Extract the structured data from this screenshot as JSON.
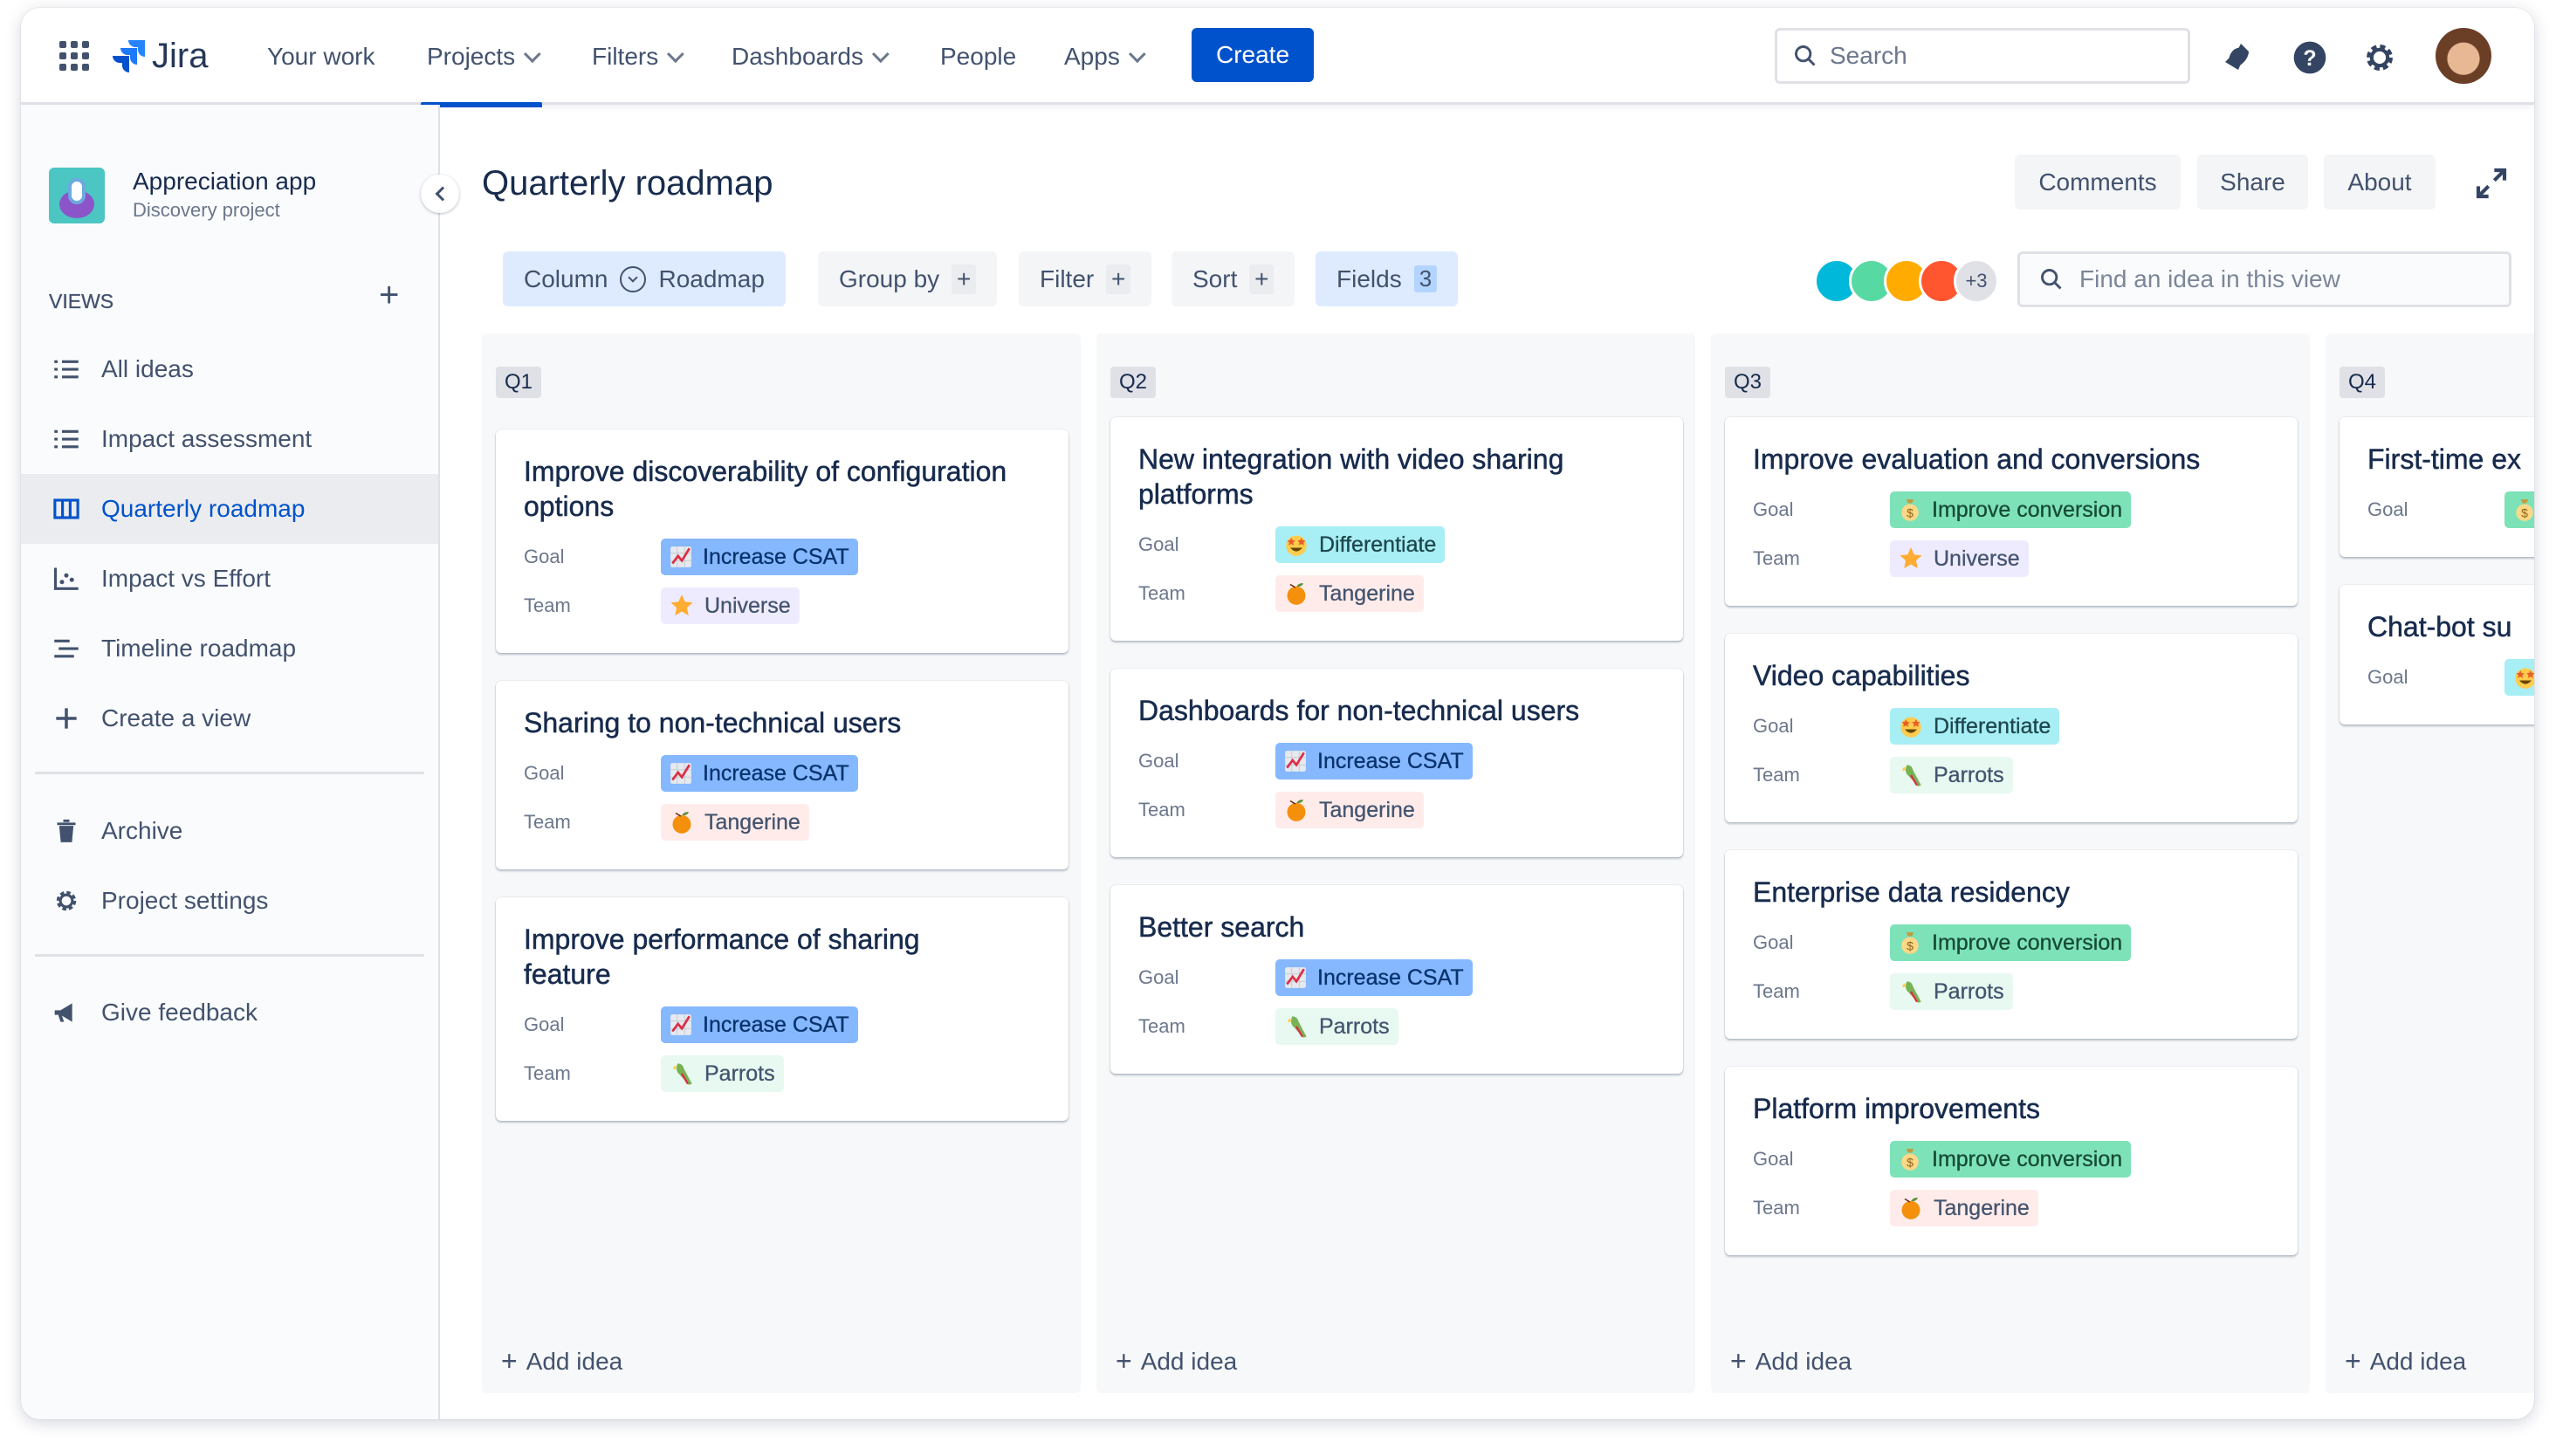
{
  "nav": {
    "logo_text": "Jira",
    "links": [
      {
        "label": "Your work",
        "dropdown": false
      },
      {
        "label": "Projects",
        "dropdown": true,
        "active": true
      },
      {
        "label": "Filters",
        "dropdown": true
      },
      {
        "label": "Dashboards",
        "dropdown": true
      },
      {
        "label": "People",
        "dropdown": false
      },
      {
        "label": "Apps",
        "dropdown": true
      }
    ],
    "create_label": "Create",
    "search_placeholder": "Search",
    "accent": "#0052CC"
  },
  "project": {
    "name": "Appreciation app",
    "type": "Discovery project"
  },
  "sidebar": {
    "views_label": "VIEWS",
    "items": [
      {
        "label": "All ideas",
        "icon": "list-icon"
      },
      {
        "label": "Impact assessment",
        "icon": "list-icon"
      },
      {
        "label": "Quarterly roadmap",
        "icon": "board-icon",
        "selected": true
      },
      {
        "label": "Impact vs Effort",
        "icon": "matrix-icon"
      },
      {
        "label": "Timeline roadmap",
        "icon": "timeline-icon"
      },
      {
        "label": "Create a view",
        "icon": "plus-icon"
      }
    ],
    "bottom_items": [
      {
        "label": "Archive",
        "icon": "trash-icon"
      },
      {
        "label": "Project settings",
        "icon": "gear-icon"
      }
    ],
    "feedback_label": "Give feedback"
  },
  "page": {
    "title": "Quarterly roadmap",
    "avatars_more": "+3",
    "comments_label": "Comments",
    "share_label": "Share",
    "about_label": "About"
  },
  "toolbar": {
    "column_label": "Column",
    "column_value": "Roadmap",
    "group_by_label": "Group by",
    "filter_label": "Filter",
    "sort_label": "Sort",
    "fields_label": "Fields",
    "fields_count": "3",
    "find_placeholder": "Find an idea in this view"
  },
  "tag_styles": {
    "Increase CSAT": {
      "bg": "#85B8FF",
      "fg": "#09326C",
      "icon": "chart-up-icon"
    },
    "Improve conversion": {
      "bg": "#7EE2B8",
      "fg": "#164B35",
      "icon": "money-bag-icon"
    },
    "Differentiate": {
      "bg": "#A8EEF5",
      "fg": "#1D474C",
      "icon": "star-struck-icon"
    },
    "Universe": {
      "bg": "#EEEBFF",
      "fg": "#44546F",
      "icon": "star-icon"
    },
    "Tangerine": {
      "bg": "#FFECEA",
      "fg": "#44546F",
      "icon": "tangerine-icon"
    },
    "Parrots": {
      "bg": "#E7F9F0",
      "fg": "#44546F",
      "icon": "parrot-icon"
    }
  },
  "labels": {
    "goal": "Goal",
    "team": "Team",
    "add_idea": "Add idea"
  },
  "columns": [
    {
      "name": "Q1",
      "cards": [
        {
          "title": "Improve discoverability of configuration options",
          "goal": "Increase CSAT",
          "team": "Universe"
        },
        {
          "title": "Sharing to non-technical users",
          "goal": "Increase CSAT",
          "team": "Tangerine"
        },
        {
          "title": "Improve performance of sharing feature",
          "goal": "Increase CSAT",
          "team": "Parrots"
        }
      ]
    },
    {
      "name": "Q2",
      "cards": [
        {
          "title": "New integration with video sharing platforms",
          "goal": "Differentiate",
          "team": "Tangerine"
        },
        {
          "title": "Dashboards for non-technical users",
          "goal": "Increase CSAT",
          "team": "Tangerine"
        },
        {
          "title": "Better search",
          "goal": "Increase CSAT",
          "team": "Parrots"
        }
      ]
    },
    {
      "name": "Q3",
      "cards": [
        {
          "title": "Improve evaluation and conversions",
          "goal": "Improve conversion",
          "team": "Universe"
        },
        {
          "title": "Video capabilities",
          "goal": "Differentiate",
          "team": "Parrots"
        },
        {
          "title": "Enterprise data residency",
          "goal": "Improve conversion",
          "team": "Parrots"
        },
        {
          "title": "Platform improvements",
          "goal": "Improve conversion",
          "team": "Tangerine"
        }
      ]
    },
    {
      "name": "Q4",
      "cards": [
        {
          "title": "First-time ex",
          "goal_icon": "money-bag-icon",
          "goal_bg": "#7EE2B8"
        },
        {
          "title": "Chat-bot su",
          "goal_icon": "star-struck-icon",
          "goal_bg": "#A8EEF5"
        }
      ]
    }
  ]
}
